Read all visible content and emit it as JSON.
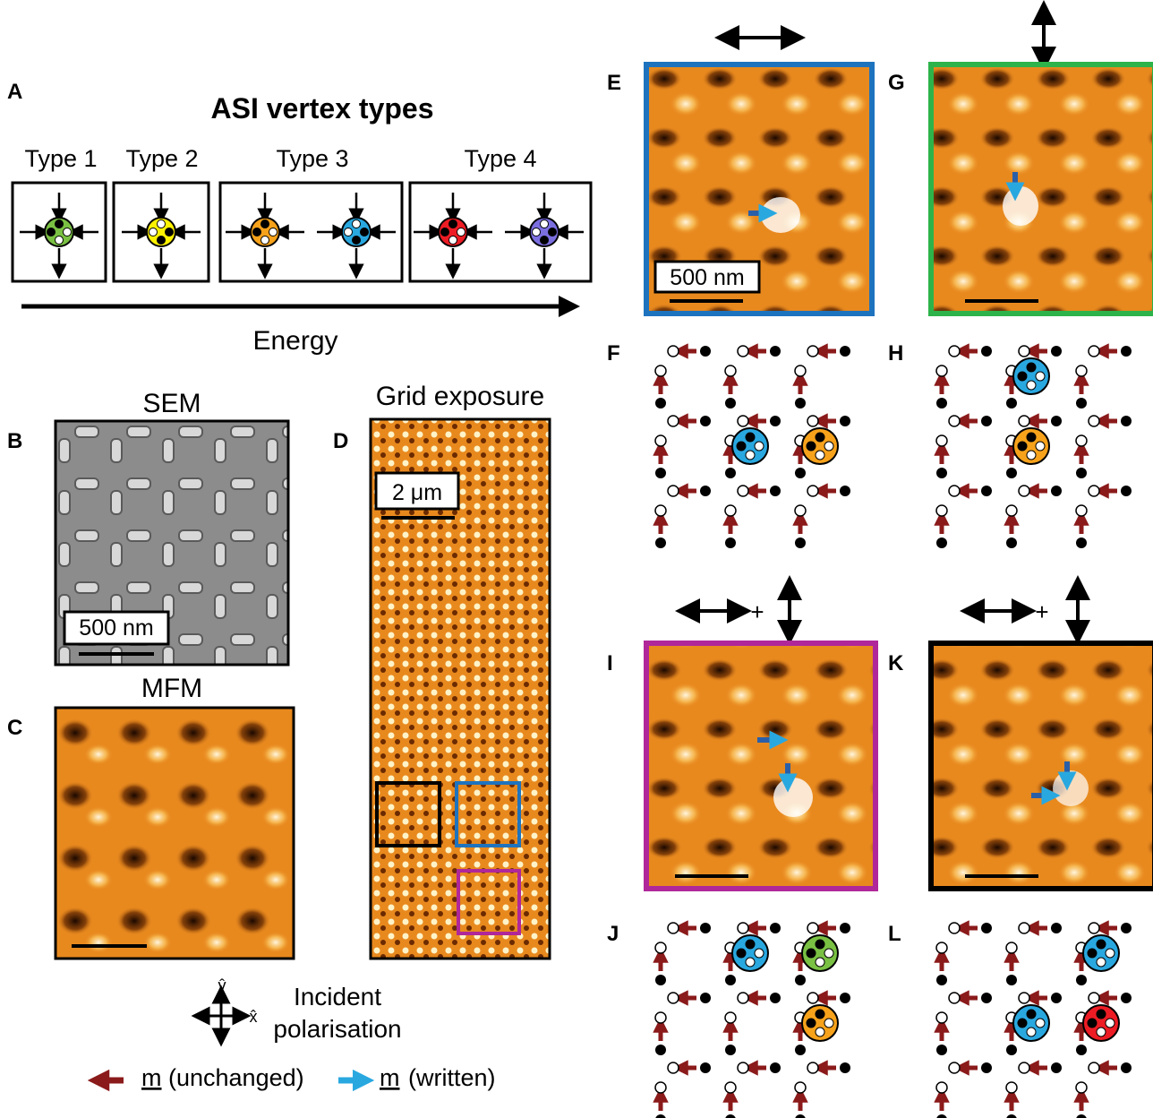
{
  "panel_labels": [
    "A",
    "B",
    "C",
    "D",
    "E",
    "F",
    "G",
    "H",
    "I",
    "J",
    "K",
    "L"
  ],
  "vertex_types": {
    "title": "ASI vertex types",
    "types": [
      "Type 1",
      "Type 2",
      "Type 3",
      "Type 4"
    ],
    "energy_label": "Energy",
    "colors": {
      "type1": "#7ac143",
      "type2": "#fff200",
      "type3a": "#f7a21b",
      "type3b": "#29a8e0",
      "type4a": "#ed1c24",
      "type4b": "#7b6fe0"
    }
  },
  "sem": {
    "title": "SEM",
    "scale": "500 nm"
  },
  "mfm": {
    "title": "MFM"
  },
  "grid": {
    "title": "Grid exposure",
    "scale": "2 μm"
  },
  "panel_e": {
    "scale": "500 nm"
  },
  "plus": "+",
  "legend": {
    "incident_line1": "Incident",
    "incident_line2": "polarisation",
    "y_axis": "ŷ",
    "x_axis": "x̂",
    "unchanged_m": "m",
    "unchanged_note": "(unchanged)",
    "written_m": "m",
    "written_note": "(written)"
  },
  "colors": {
    "blue_frame": "#1e73be",
    "green_frame": "#2db34a",
    "magenta_frame": "#b0279a",
    "arrow_red": "#8b1a1a",
    "arrow_blue": "#29a8e0",
    "orange": "#e8891e"
  },
  "lattices": {
    "F": [
      {
        "type": "type3b",
        "i": 1,
        "j": 1
      },
      {
        "type": "type3a",
        "i": 2,
        "j": 1
      }
    ],
    "H": [
      {
        "type": "type3b",
        "i": 1,
        "j": 0
      },
      {
        "type": "type3a",
        "i": 1,
        "j": 1
      }
    ],
    "J": [
      {
        "type": "type3b",
        "i": 1,
        "j": 0
      },
      {
        "type": "type1",
        "i": 2,
        "j": 0
      },
      {
        "type": "type3a",
        "i": 2,
        "j": 1
      }
    ],
    "L": [
      {
        "type": "type3b",
        "i": 2,
        "j": 0
      },
      {
        "type": "type3b",
        "i": 1,
        "j": 1
      },
      {
        "type": "type4a",
        "i": 2,
        "j": 1
      }
    ]
  }
}
